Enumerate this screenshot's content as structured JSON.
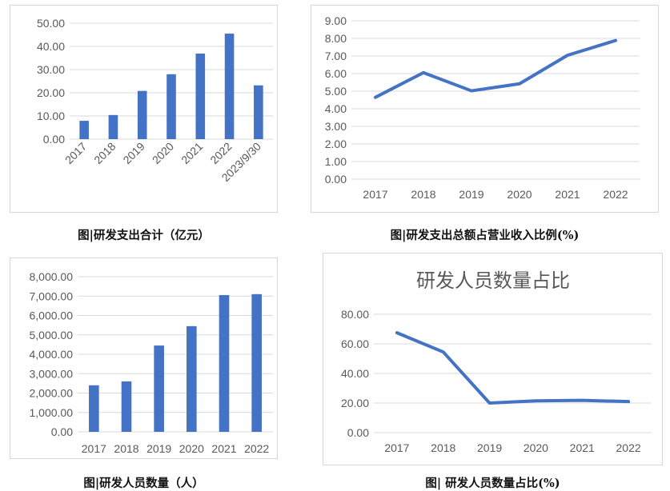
{
  "captions": {
    "c1": "图|研发支出合计（亿元）",
    "c2": "图|研发支出总额占营业收入比例(%)",
    "c3": "图|研发人员数量（人）",
    "c4": "图| 研发人员数量占比(%)"
  },
  "colors": {
    "series": "#4472C4",
    "grid": "#d9d9d9",
    "text": "#595959"
  },
  "chart_data": [
    {
      "type": "bar",
      "categories": [
        "2017",
        "2018",
        "2019",
        "2020",
        "2021",
        "2022",
        "2023/9/30"
      ],
      "values": [
        7.9,
        10.4,
        20.8,
        28.0,
        36.9,
        45.5,
        23.2
      ],
      "yticks": [
        "0.00",
        "10.00",
        "20.00",
        "30.00",
        "40.00",
        "50.00"
      ],
      "ylim": [
        0,
        50
      ],
      "grid": true,
      "x_label_rotation": -45
    },
    {
      "type": "line",
      "categories": [
        "2017",
        "2018",
        "2019",
        "2020",
        "2021",
        "2022"
      ],
      "values": [
        4.65,
        6.05,
        5.02,
        5.42,
        7.04,
        7.88
      ],
      "yticks": [
        "0.00",
        "1.00",
        "2.00",
        "3.00",
        "4.00",
        "5.00",
        "6.00",
        "7.00",
        "8.00",
        "9.00"
      ],
      "ylim": [
        0,
        9
      ],
      "grid": true
    },
    {
      "type": "bar",
      "categories": [
        "2017",
        "2018",
        "2019",
        "2020",
        "2021",
        "2022"
      ],
      "values": [
        2400,
        2600,
        4450,
        5450,
        7050,
        7100
      ],
      "yticks": [
        "0.00",
        "1,000.00",
        "2,000.00",
        "3,000.00",
        "4,000.00",
        "5,000.00",
        "6,000.00",
        "7,000.00",
        "8,000.00"
      ],
      "ylim": [
        0,
        8000
      ],
      "grid": true
    },
    {
      "type": "line",
      "title": "研发人员数量占比",
      "categories": [
        "2017",
        "2018",
        "2019",
        "2020",
        "2021",
        "2022"
      ],
      "values": [
        67.5,
        54.5,
        20.0,
        21.5,
        21.8,
        21.0
      ],
      "yticks": [
        "0.00",
        "20.00",
        "40.00",
        "60.00",
        "80.00"
      ],
      "ylim": [
        0,
        80
      ],
      "grid": true
    }
  ]
}
